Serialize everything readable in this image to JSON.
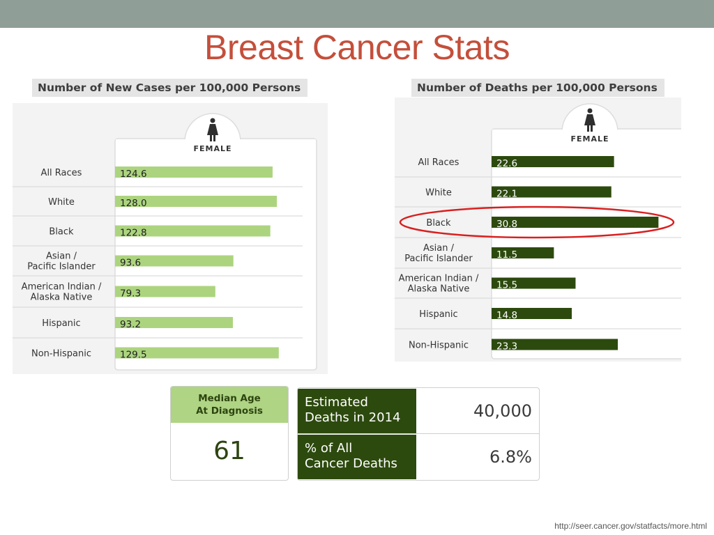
{
  "slide": {
    "title": "Breast Cancer Stats",
    "source": "http://seer.cancer.gov/statfacts/more.html"
  },
  "colors": {
    "new_cases_bar": "#acd47f",
    "deaths_bar": "#2d4a0e",
    "title": "#c44f3b",
    "highlight": "#d91f1f"
  },
  "chart_data": [
    {
      "type": "bar",
      "orientation": "horizontal",
      "title": "Number of New Cases per 100,000 Persons",
      "column_label": "FEMALE",
      "icon": "female-icon",
      "categories": [
        "All Races",
        "White",
        "Black",
        "Asian / Pacific Islander",
        "American Indian / Alaska Native",
        "Hispanic",
        "Non-Hispanic"
      ],
      "values": [
        124.6,
        128.0,
        122.8,
        93.6,
        79.3,
        93.2,
        129.5
      ],
      "labels": [
        "124.6",
        "128.0",
        "122.8",
        "93.6",
        "79.3",
        "93.2",
        "129.5"
      ],
      "xlim": [
        0,
        150
      ]
    },
    {
      "type": "bar",
      "orientation": "horizontal",
      "title": "Number of Deaths per 100,000 Persons",
      "column_label": "FEMALE",
      "icon": "female-icon",
      "categories": [
        "All Races",
        "White",
        "Black",
        "Asian / Pacific Islander",
        "American Indian / Alaska Native",
        "Hispanic",
        "Non-Hispanic"
      ],
      "values": [
        22.6,
        22.1,
        30.8,
        11.5,
        15.5,
        14.8,
        23.3
      ],
      "labels": [
        "22.6",
        "22.1",
        "30.8",
        "11.5",
        "15.5",
        "14.8",
        "23.3"
      ],
      "xlim": [
        0,
        35
      ],
      "highlighted_category": "Black"
    }
  ],
  "median_age": {
    "label_line1": "Median Age",
    "label_line2": "At Diagnosis",
    "value": "61"
  },
  "estimates": [
    {
      "label_line1": "Estimated",
      "label_line2": "Deaths in 2014",
      "value": "40,000"
    },
    {
      "label_line1": "% of All",
      "label_line2": "Cancer Deaths",
      "value": "6.8%"
    }
  ]
}
